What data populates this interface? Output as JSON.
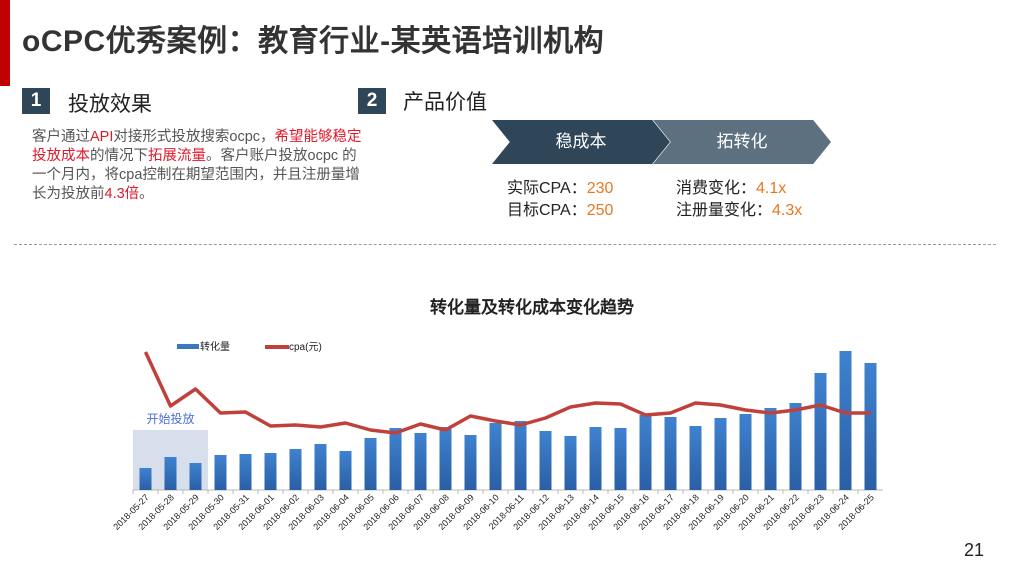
{
  "title": "oCPC优秀案例：教育行业-某英语培训机构",
  "section1": {
    "num": "1",
    "label": "投放效果",
    "desc": [
      {
        "t": "客户通过",
        "r": false
      },
      {
        "t": "API",
        "r": true
      },
      {
        "t": "对接形式投放搜索ocpc，",
        "r": false
      },
      {
        "t": "希望能够稳定投放成本",
        "r": true
      },
      {
        "t": "的情况下",
        "r": false
      },
      {
        "t": "拓展流量",
        "r": true
      },
      {
        "t": "。客户账户投放ocpc 的一个月内，将cpa控制在期望范围内，并且注册量增长为投放前",
        "r": false
      },
      {
        "t": "4.3倍",
        "r": true
      },
      {
        "t": "。",
        "r": false
      }
    ]
  },
  "section2": {
    "num": "2",
    "label": "产品价值",
    "chevrons": [
      "稳成本",
      "拓转化"
    ],
    "metrics_left": [
      {
        "label": "实际CPA：",
        "value": "230"
      },
      {
        "label": "目标CPA：",
        "value": "250"
      }
    ],
    "metrics_right": [
      {
        "label": "消费变化：",
        "value": "4.1x"
      },
      {
        "label": "注册量变化：",
        "value": "4.3x"
      }
    ]
  },
  "page_number": "21",
  "colors": {
    "bar": "#3a78c2",
    "line": "#c0413b",
    "accent": "#e0192b",
    "orange": "#e87722",
    "navy": "#2f4558"
  },
  "chart_data": {
    "type": "bar+line",
    "title": "转化量及转化成本变化趋势",
    "legend": [
      "转化量",
      "cpa(元)"
    ],
    "legend_position": "top-left",
    "annotation": "开始投放",
    "annotation_range": [
      "2018-05-27",
      "2018-05-29"
    ],
    "categories": [
      "2018-05-27",
      "2018-05-28",
      "2018-05-29",
      "2018-05-30",
      "2018-05-31",
      "2018-06-01",
      "2018-06-02",
      "2018-06-03",
      "2018-06-04",
      "2018-06-05",
      "2018-06-06",
      "2018-06-07",
      "2018-06-08",
      "2018-06-09",
      "2018-06-10",
      "2018-06-11",
      "2018-06-12",
      "2018-06-13",
      "2018-06-14",
      "2018-06-15",
      "2018-06-16",
      "2018-06-17",
      "2018-06-18",
      "2018-06-19",
      "2018-06-20",
      "2018-06-21",
      "2018-06-22",
      "2018-06-23",
      "2018-06-24",
      "2018-06-25"
    ],
    "series": [
      {
        "name": "转化量",
        "type": "bar",
        "values": [
          22,
          33,
          27,
          35,
          36,
          37,
          41,
          46,
          39,
          52,
          62,
          57,
          63,
          55,
          67,
          69,
          59,
          54,
          63,
          62,
          75,
          73,
          64,
          72,
          76,
          82,
          87,
          117,
          139,
          127
        ]
      },
      {
        "name": "cpa(元)",
        "type": "line",
        "values": [
          138,
          84,
          101,
          77,
          78,
          64,
          65,
          63,
          67,
          60,
          57,
          66,
          60,
          74,
          69,
          65,
          72,
          83,
          87,
          86,
          75,
          77,
          87,
          85,
          80,
          77,
          80,
          85,
          77,
          77
        ]
      }
    ],
    "ylim": [
      0,
      145
    ],
    "grid": false,
    "note": "no y-axis shown; values are relative estimates"
  }
}
